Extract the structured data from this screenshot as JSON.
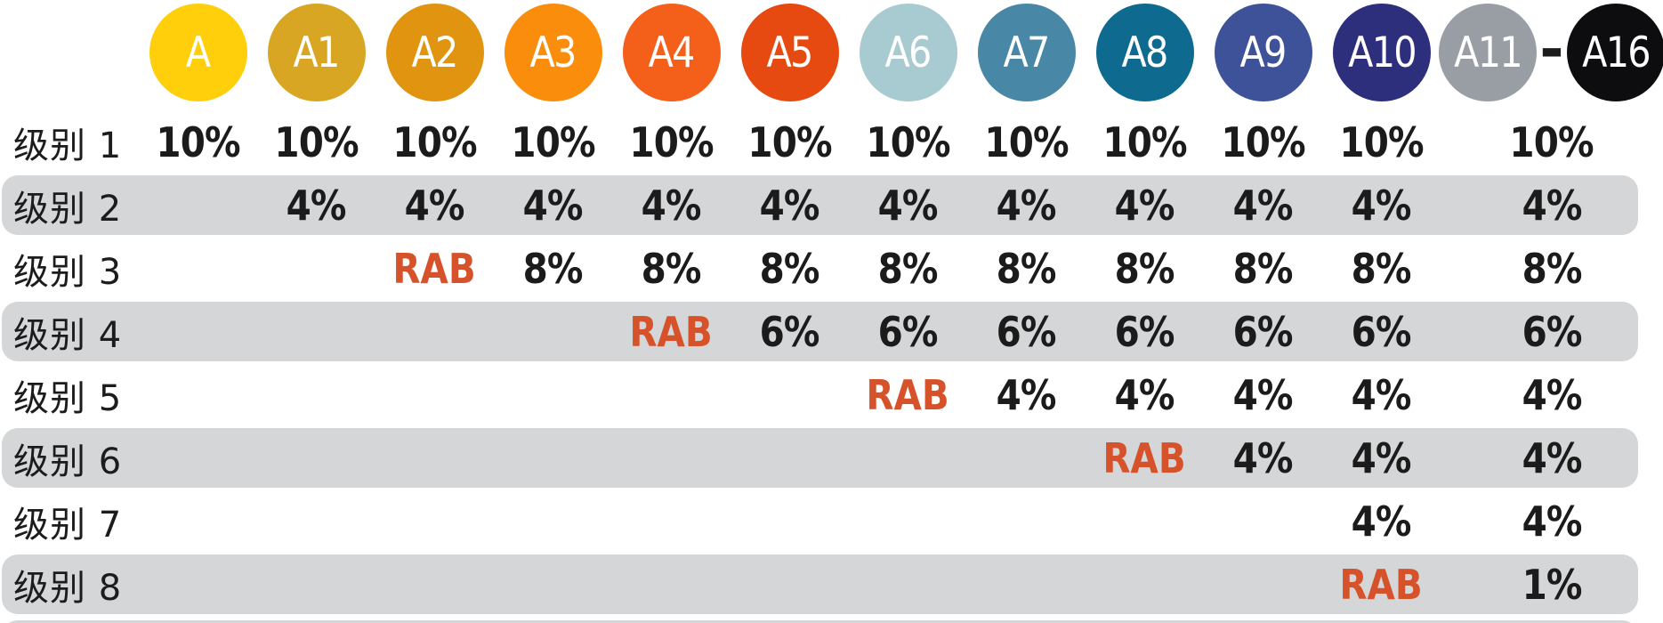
{
  "palette": {
    "value_text": "#1b1b1b",
    "rab_text": "#d6522a",
    "row_band": "#d4d6d8",
    "circle_text": "#ffffff",
    "background": "#ffffff"
  },
  "header": {
    "tiers": [
      {
        "label": "A",
        "color": "#fecf0a"
      },
      {
        "label": "A1",
        "color": "#d8a622"
      },
      {
        "label": "A2",
        "color": "#e0940f"
      },
      {
        "label": "A3",
        "color": "#fa8d0c"
      },
      {
        "label": "A4",
        "color": "#f45f1a"
      },
      {
        "label": "A5",
        "color": "#e64a10"
      },
      {
        "label": "A6",
        "color": "#a8cad1"
      },
      {
        "label": "A7",
        "color": "#4987a6"
      },
      {
        "label": "A8",
        "color": "#0f6a90"
      },
      {
        "label": "A9",
        "color": "#3e5299"
      },
      {
        "label": "A10",
        "color": "#2d2e7c"
      }
    ],
    "tier_group": {
      "first": {
        "label": "A11",
        "color": "#989ea3"
      },
      "separator": "-",
      "last": {
        "label": "A16",
        "color": "#0d0d0f"
      }
    }
  },
  "rows": [
    {
      "label": "级别 1",
      "cells": [
        "10%",
        "10%",
        "10%",
        "10%",
        "10%",
        "10%",
        "10%",
        "10%",
        "10%",
        "10%",
        "10%",
        "10%"
      ]
    },
    {
      "label": "级别 2",
      "cells": [
        "",
        "4%",
        "4%",
        "4%",
        "4%",
        "4%",
        "4%",
        "4%",
        "4%",
        "4%",
        "4%",
        "4%"
      ]
    },
    {
      "label": "级别 3",
      "cells": [
        "",
        "",
        "RAB",
        "8%",
        "8%",
        "8%",
        "8%",
        "8%",
        "8%",
        "8%",
        "8%",
        "8%"
      ]
    },
    {
      "label": "级别 4",
      "cells": [
        "",
        "",
        "",
        "",
        "RAB",
        "6%",
        "6%",
        "6%",
        "6%",
        "6%",
        "6%",
        "6%"
      ]
    },
    {
      "label": "级别 5",
      "cells": [
        "",
        "",
        "",
        "",
        "",
        "",
        "RAB",
        "4%",
        "4%",
        "4%",
        "4%",
        "4%"
      ]
    },
    {
      "label": "级别 6",
      "cells": [
        "",
        "",
        "",
        "",
        "",
        "",
        "",
        "",
        "RAB",
        "4%",
        "4%",
        "4%"
      ]
    },
    {
      "label": "级别 7",
      "cells": [
        "",
        "",
        "",
        "",
        "",
        "",
        "",
        "",
        "",
        "",
        "4%",
        "4%"
      ]
    },
    {
      "label": "级别 8",
      "cells": [
        "",
        "",
        "",
        "",
        "",
        "",
        "",
        "",
        "",
        "",
        "RAB",
        "1%"
      ]
    }
  ],
  "chart_data": {
    "type": "table",
    "columns": [
      "A",
      "A1",
      "A2",
      "A3",
      "A4",
      "A5",
      "A6",
      "A7",
      "A8",
      "A9",
      "A10",
      "A11-A16"
    ],
    "rows": [
      {
        "label": "级别 1",
        "values": [
          "10%",
          "10%",
          "10%",
          "10%",
          "10%",
          "10%",
          "10%",
          "10%",
          "10%",
          "10%",
          "10%",
          "10%"
        ]
      },
      {
        "label": "级别 2",
        "values": [
          "",
          "4%",
          "4%",
          "4%",
          "4%",
          "4%",
          "4%",
          "4%",
          "4%",
          "4%",
          "4%",
          "4%"
        ]
      },
      {
        "label": "级别 3",
        "values": [
          "",
          "",
          "RAB",
          "8%",
          "8%",
          "8%",
          "8%",
          "8%",
          "8%",
          "8%",
          "8%",
          "8%"
        ]
      },
      {
        "label": "级别 4",
        "values": [
          "",
          "",
          "",
          "",
          "RAB",
          "6%",
          "6%",
          "6%",
          "6%",
          "6%",
          "6%",
          "6%"
        ]
      },
      {
        "label": "级别 5",
        "values": [
          "",
          "",
          "",
          "",
          "",
          "",
          "RAB",
          "4%",
          "4%",
          "4%",
          "4%",
          "4%"
        ]
      },
      {
        "label": "级别 6",
        "values": [
          "",
          "",
          "",
          "",
          "",
          "",
          "",
          "",
          "RAB",
          "4%",
          "4%",
          "4%"
        ]
      },
      {
        "label": "级别 7",
        "values": [
          "",
          "",
          "",
          "",
          "",
          "",
          "",
          "",
          "",
          "",
          "4%",
          "4%"
        ]
      },
      {
        "label": "级别 8",
        "values": [
          "",
          "",
          "",
          "",
          "",
          "",
          "",
          "",
          "",
          "",
          "RAB",
          "1%"
        ]
      }
    ],
    "annotations": "RAB markers step diagonally: A2@L3, A4@L4, A6@L5, A8@L6, A10@L8; alternating gray rounded row bands on levels 2,4,6,8; partial band cropped at bottom edge"
  }
}
